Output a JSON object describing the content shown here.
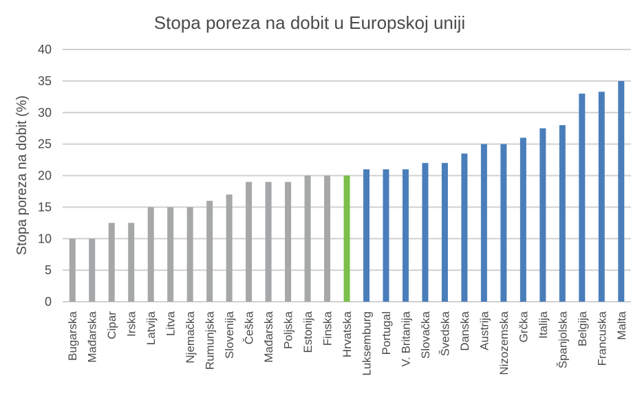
{
  "chart_data": {
    "type": "bar",
    "title": "Stopa poreza na dobit u Europskoj uniji",
    "xlabel": "",
    "ylabel": "Stopa poreza na dobit (%)",
    "ylim": [
      0,
      40
    ],
    "yticks": [
      0,
      5,
      10,
      15,
      20,
      25,
      30,
      35,
      40
    ],
    "grid": true,
    "legend": "none",
    "categories": [
      "Bugarska",
      "Mađarska",
      "Cipar",
      "Irska",
      "Latvija",
      "Litva",
      "Njemačka",
      "Rumunjska",
      "Slovenija",
      "Češka",
      "Mađarska",
      "Poljska",
      "Estonija",
      "Finska",
      "Hrvatska",
      "Luksemburg",
      "Portugal",
      "V. Britanija",
      "Slovačka",
      "Švedska",
      "Danska",
      "Austrija",
      "Nizozemska",
      "Grčka",
      "Italija",
      "Španjolska",
      "Belgija",
      "Francuska",
      "Malta"
    ],
    "values": [
      10,
      10,
      12.5,
      12.5,
      15,
      15,
      15,
      16,
      17,
      19,
      19,
      19,
      20,
      20,
      20,
      21,
      21,
      21,
      22,
      22,
      23.5,
      25,
      25,
      26,
      27.5,
      28,
      33,
      33.3,
      35
    ],
    "bar_colors": [
      "#a5a7a8",
      "#a5a7a8",
      "#a5a7a8",
      "#a5a7a8",
      "#a5a7a8",
      "#a5a7a8",
      "#a5a7a8",
      "#a5a7a8",
      "#a5a7a8",
      "#a5a7a8",
      "#a5a7a8",
      "#a5a7a8",
      "#a5a7a8",
      "#a5a7a8",
      "#7bbf4a",
      "#4a7ebb",
      "#4a7ebb",
      "#4a7ebb",
      "#4a7ebb",
      "#4a7ebb",
      "#4a7ebb",
      "#4a7ebb",
      "#4a7ebb",
      "#4a7ebb",
      "#4a7ebb",
      "#4a7ebb",
      "#4a7ebb",
      "#4a7ebb",
      "#4a7ebb"
    ]
  }
}
